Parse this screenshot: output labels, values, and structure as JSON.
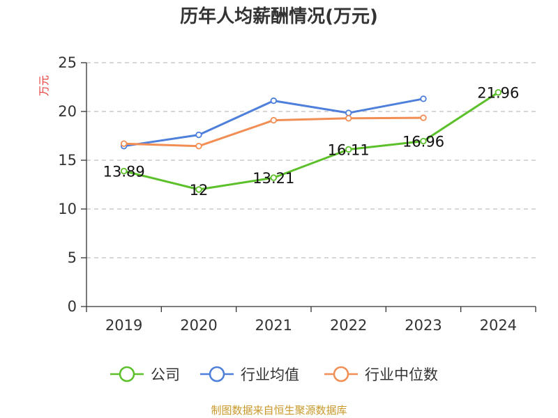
{
  "chart_data": {
    "type": "line",
    "title": "历年人均薪酬情况(万元)",
    "ylabel": "万元",
    "xlabel": "",
    "ylim": [
      0,
      25
    ],
    "yticks": [
      0,
      5,
      10,
      15,
      20,
      25
    ],
    "categories": [
      "2019",
      "2020",
      "2021",
      "2022",
      "2023",
      "2024"
    ],
    "grid": true,
    "legend_position": "bottom",
    "series": [
      {
        "name": "公司",
        "color": "#5cc02a",
        "values": [
          13.89,
          12,
          13.21,
          16.11,
          16.96,
          21.96
        ],
        "labels": [
          "13.89",
          "12",
          "13.21",
          "16.11",
          "16.96",
          "21.96"
        ]
      },
      {
        "name": "行业均值",
        "color": "#4e7fdb",
        "values": [
          16.45,
          17.6,
          21.1,
          19.85,
          21.3,
          null
        ]
      },
      {
        "name": "行业中位数",
        "color": "#f28e54",
        "values": [
          16.7,
          16.45,
          19.1,
          19.3,
          19.35,
          null
        ]
      }
    ]
  },
  "source": "制图数据来自恒生聚源数据库"
}
